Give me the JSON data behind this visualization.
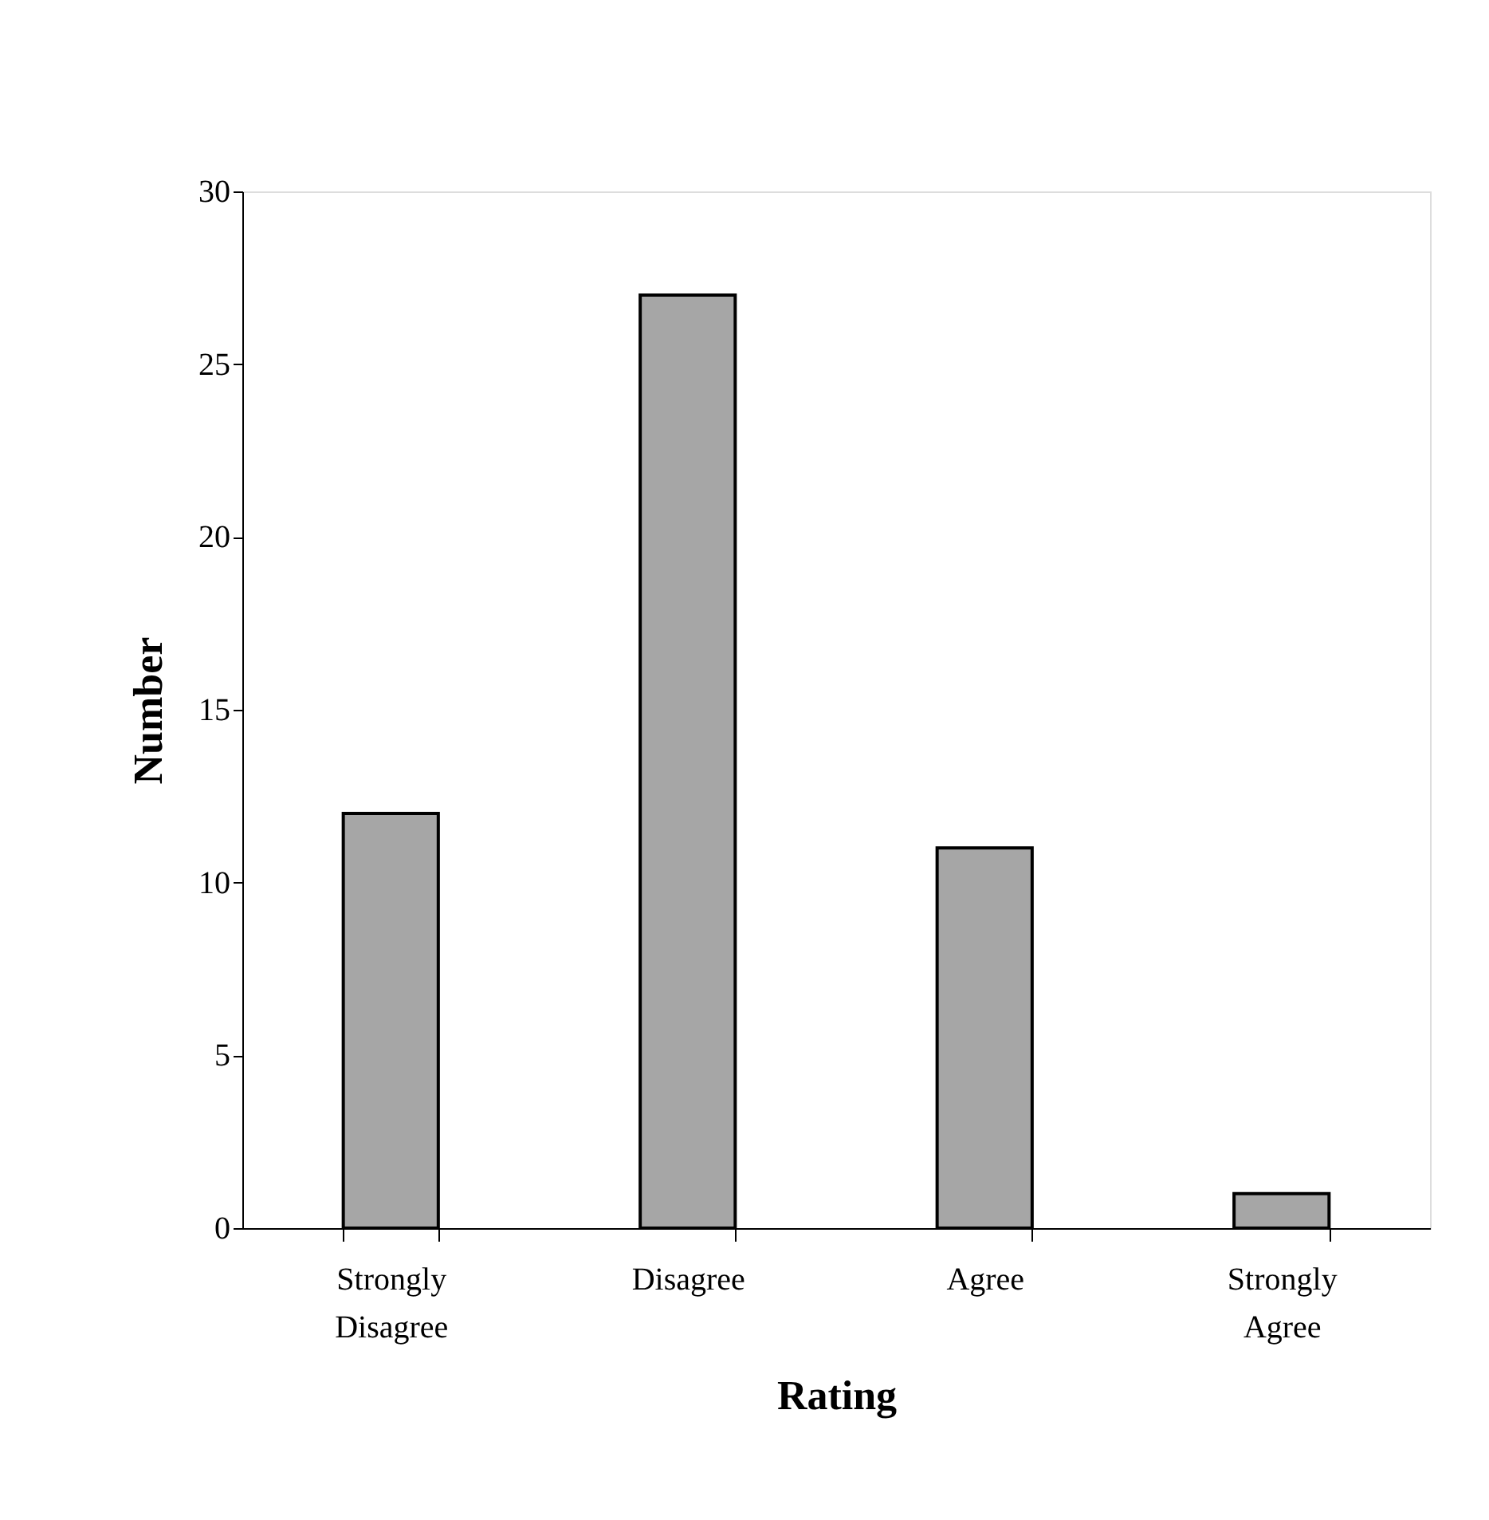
{
  "chart_data": {
    "type": "bar",
    "xlabel": "Rating",
    "ylabel": "Number",
    "categories": [
      "Strongly Disagree",
      "Disagree",
      "Agree",
      "Strongly Agree"
    ],
    "values": [
      12,
      27,
      11,
      1
    ],
    "color": "#a6a6a6",
    "ylim": [
      0,
      30
    ],
    "yticks": [
      0,
      5,
      10,
      15,
      20,
      25,
      30
    ],
    "grid": false
  }
}
